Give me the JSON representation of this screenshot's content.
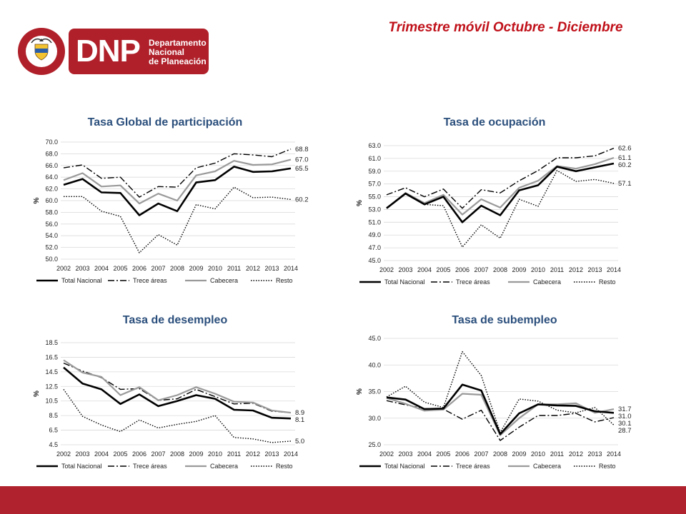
{
  "header": {
    "title": "Trimestre móvil Octubre - Diciembre",
    "logo": {
      "seal_text": "REPÚBLICA DE COLOMBIA",
      "acronym": "DNP",
      "name_lines": [
        "Departamento",
        "Nacional",
        "de Planeación"
      ],
      "brand_color": "#b0202a"
    }
  },
  "styles": {
    "series_colors": {
      "Total Nacional": "#000000",
      "Trece áreas": "#000000",
      "Cabecera": "#9a9a9a",
      "Resto": "#000000"
    },
    "footer_color": "#b0232e",
    "title_color": "#c0111a",
    "chart_title_color": "#2b4f7c"
  },
  "chart_data": [
    {
      "type": "line",
      "title": "Tasa Global de participación",
      "ylabel": "%",
      "ylim": [
        50.0,
        70.0
      ],
      "yticks": [
        "50.0",
        "52.0",
        "54.0",
        "56.0",
        "58.0",
        "60.0",
        "62.0",
        "64.0",
        "66.0",
        "68.0",
        "70.0"
      ],
      "categories": [
        "2002",
        "2003",
        "2004",
        "2005",
        "2006",
        "2007",
        "2008",
        "2009",
        "2010",
        "2011",
        "2012",
        "2013",
        "2014"
      ],
      "legend_position": "bottom",
      "grid": true,
      "series": [
        {
          "name": "Total Nacional",
          "values": [
            62.7,
            63.7,
            61.4,
            61.3,
            57.5,
            59.5,
            58.2,
            63.1,
            63.5,
            65.8,
            64.9,
            65.0,
            65.5
          ],
          "end_label": "65.5"
        },
        {
          "name": "Trece áreas",
          "values": [
            65.6,
            66.1,
            63.8,
            64.0,
            60.6,
            62.4,
            62.3,
            65.6,
            66.4,
            68.0,
            67.8,
            67.5,
            68.8
          ],
          "end_label": "68.8"
        },
        {
          "name": "Cabecera",
          "values": [
            63.5,
            64.7,
            62.4,
            62.6,
            59.5,
            61.2,
            60.0,
            64.3,
            65.0,
            66.8,
            66.1,
            66.2,
            67.0
          ],
          "end_label": "67.0"
        },
        {
          "name": "Resto",
          "values": [
            60.7,
            60.7,
            58.2,
            57.3,
            51.1,
            54.2,
            52.4,
            59.3,
            58.6,
            62.3,
            60.5,
            60.6,
            60.2
          ],
          "end_label": "60.2"
        }
      ]
    },
    {
      "type": "line",
      "title": "Tasa de ocupación",
      "ylabel": "%",
      "ylim": [
        45.0,
        63.0
      ],
      "yticks": [
        "45.0",
        "47.0",
        "49.0",
        "51.0",
        "53.0",
        "55.0",
        "57.0",
        "59.0",
        "61.0",
        "63.0"
      ],
      "categories": [
        "2002",
        "2003",
        "2004",
        "2005",
        "2006",
        "2007",
        "2008",
        "2009",
        "2010",
        "2011",
        "2012",
        "2013",
        "2014"
      ],
      "legend_position": "bottom",
      "grid": true,
      "series": [
        {
          "name": "Total Nacional",
          "values": [
            53.2,
            55.5,
            53.8,
            55.0,
            51.0,
            53.6,
            52.1,
            56.0,
            56.8,
            59.7,
            59.0,
            59.6,
            60.2
          ],
          "end_label": "60.2"
        },
        {
          "name": "Trece áreas",
          "values": [
            55.3,
            56.4,
            55.0,
            56.2,
            53.2,
            56.1,
            55.6,
            57.5,
            59.1,
            61.1,
            61.1,
            61.4,
            62.6
          ],
          "end_label": "62.6"
        },
        {
          "name": "Cabecera",
          "values": [
            53.2,
            55.6,
            54.0,
            55.3,
            52.2,
            54.6,
            53.3,
            56.4,
            57.5,
            59.8,
            59.4,
            60.1,
            61.1
          ],
          "end_label": "61.1"
        },
        {
          "name": "Resto",
          "values": [
            53.3,
            55.4,
            53.8,
            53.6,
            47.1,
            50.6,
            48.5,
            54.6,
            53.5,
            59.1,
            57.4,
            57.7,
            57.1
          ],
          "end_label": "57.1"
        }
      ]
    },
    {
      "type": "line",
      "title": "Tasa de desempleo",
      "ylabel": "%",
      "ylim": [
        4.5,
        18.5
      ],
      "yticks": [
        "4.5",
        "6.5",
        "8.5",
        "10.5",
        "12.5",
        "14.5",
        "16.5",
        "18.5"
      ],
      "categories": [
        "2002",
        "2003",
        "2004",
        "2005",
        "2006",
        "2007",
        "2008",
        "2009",
        "2010",
        "2011",
        "2012",
        "2013",
        "2014"
      ],
      "legend_position": "bottom",
      "grid": true,
      "series": [
        {
          "name": "Total Nacional",
          "values": [
            15.1,
            12.9,
            12.1,
            10.1,
            11.4,
            9.8,
            10.5,
            11.3,
            10.8,
            9.3,
            9.2,
            8.2,
            8.1
          ],
          "end_label": "8.1"
        },
        {
          "name": "Trece áreas",
          "values": [
            15.7,
            14.6,
            13.7,
            12.1,
            12.2,
            10.6,
            10.8,
            12.1,
            11.1,
            10.1,
            10.2,
            9.1,
            8.9
          ],
          "end_label": "8.9"
        },
        {
          "name": "Cabecera",
          "values": [
            16.1,
            14.4,
            13.8,
            11.3,
            12.4,
            10.6,
            11.3,
            12.4,
            11.5,
            10.4,
            10.3,
            9.2,
            8.9
          ],
          "end_label": null
        },
        {
          "name": "Resto",
          "values": [
            12.1,
            8.4,
            7.2,
            6.3,
            7.9,
            6.8,
            7.3,
            7.7,
            8.5,
            5.5,
            5.3,
            4.8,
            5.0
          ],
          "end_label": "5.0"
        }
      ]
    },
    {
      "type": "line",
      "title": "Tasa de subempleo",
      "ylabel": "%",
      "ylim": [
        25.0,
        45.0
      ],
      "yticks": [
        "25.0",
        "30.0",
        "35.0",
        "40.0",
        "45.0"
      ],
      "categories": [
        "2002",
        "2003",
        "2004",
        "2005",
        "2006",
        "2007",
        "2008",
        "2009",
        "2010",
        "2011",
        "2012",
        "2013",
        "2014"
      ],
      "legend_position": "bottom",
      "grid": true,
      "series": [
        {
          "name": "Total Nacional",
          "values": [
            33.9,
            33.5,
            31.7,
            31.8,
            36.3,
            35.2,
            27.0,
            30.9,
            32.6,
            32.4,
            32.3,
            31.3,
            31.0
          ],
          "end_label": "31.0"
        },
        {
          "name": "Trece áreas",
          "values": [
            33.3,
            32.5,
            31.8,
            31.7,
            29.8,
            31.5,
            25.8,
            28.3,
            30.5,
            30.5,
            30.9,
            29.3,
            30.1
          ],
          "end_label": "30.1"
        },
        {
          "name": "Cabecera",
          "values": [
            33.8,
            32.7,
            31.4,
            31.6,
            34.6,
            34.4,
            26.8,
            30.0,
            32.6,
            32.6,
            32.8,
            31.0,
            31.7
          ],
          "end_label": "31.7"
        },
        {
          "name": "Resto",
          "values": [
            34.0,
            36.0,
            33.0,
            32.0,
            42.5,
            38.0,
            27.3,
            33.6,
            33.2,
            31.5,
            31.0,
            32.0,
            28.7
          ],
          "end_label": "28.7"
        }
      ]
    }
  ]
}
